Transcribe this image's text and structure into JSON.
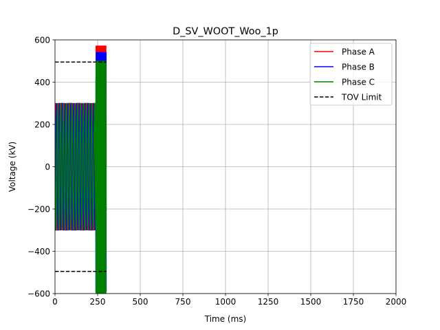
{
  "chart_data": {
    "type": "line",
    "title": "D_SV_WOOT_Woo_1p",
    "xlabel": "Time (ms)",
    "ylabel": "Voltage (kV)",
    "xlim": [
      0,
      2000
    ],
    "ylim": [
      -600,
      600
    ],
    "xticks": [
      0,
      250,
      500,
      750,
      1000,
      1250,
      1500,
      1750,
      2000
    ],
    "yticks": [
      -600,
      -400,
      -200,
      0,
      200,
      400,
      600
    ],
    "xtick_labels": [
      "0",
      "250",
      "500",
      "750",
      "1000",
      "1250",
      "1500",
      "1750",
      "2000"
    ],
    "ytick_labels": [
      "−600",
      "−400",
      "−200",
      "0",
      "200",
      "400",
      "600"
    ],
    "grid": true,
    "legend_position": "top-right",
    "series": [
      {
        "name": "Phase A",
        "color": "#ff0000",
        "style": "solid",
        "waveform": {
          "frequency_hz": 60,
          "amplitude_kv": 300,
          "phase_deg": 0,
          "t_start_ms": 0,
          "t_end_ms": 240,
          "burst_start_ms": 240,
          "burst_end_ms": 300,
          "burst_amplitude_kv": 600
        }
      },
      {
        "name": "Phase B",
        "color": "#0000ff",
        "style": "solid",
        "waveform": {
          "frequency_hz": 60,
          "amplitude_kv": 300,
          "phase_deg": -120,
          "t_start_ms": 0,
          "t_end_ms": 240,
          "burst_start_ms": 240,
          "burst_end_ms": 300,
          "burst_amplitude_kv": 600
        }
      },
      {
        "name": "Phase C",
        "color": "#008000",
        "style": "solid",
        "waveform": {
          "frequency_hz": 60,
          "amplitude_kv": 300,
          "phase_deg": 120,
          "t_start_ms": 0,
          "t_end_ms": 240,
          "burst_start_ms": 240,
          "burst_end_ms": 300,
          "burst_amplitude_kv": 600
        }
      },
      {
        "name": "TOV Limit",
        "color": "#000000",
        "style": "dashed",
        "levels_kv": [
          495,
          -495
        ],
        "x": [
          0,
          300
        ]
      }
    ]
  }
}
